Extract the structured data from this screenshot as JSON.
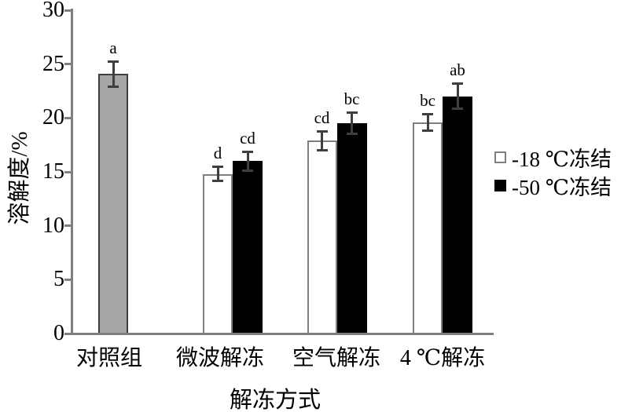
{
  "chart_data": {
    "type": "bar",
    "title": "",
    "xlabel": "解冻方式",
    "ylabel": "溶解度/%",
    "ylim": [
      0,
      30
    ],
    "yticks": [
      0,
      5,
      10,
      15,
      20,
      25,
      30
    ],
    "grid": false,
    "legend_position": "right",
    "categories": [
      "对照组",
      "微波解冻",
      "空气解冻",
      "4 ℃解冻"
    ],
    "series": [
      {
        "name": "对照组",
        "style": "control",
        "points": [
          {
            "category": "对照组",
            "value": 24.1,
            "error": 1.2,
            "letter": "a"
          }
        ]
      },
      {
        "name": "-18 ℃冻结",
        "style": "open",
        "points": [
          {
            "category": "微波解冻",
            "value": 14.8,
            "error": 0.7,
            "letter": "d"
          },
          {
            "category": "空气解冻",
            "value": 17.9,
            "error": 0.9,
            "letter": "cd"
          },
          {
            "category": "4 ℃解冻",
            "value": 19.6,
            "error": 0.8,
            "letter": "bc"
          }
        ]
      },
      {
        "name": "-50 ℃冻结",
        "style": "solid",
        "points": [
          {
            "category": "微波解冻",
            "value": 16.0,
            "error": 0.9,
            "letter": "cd"
          },
          {
            "category": "空气解冻",
            "value": 19.5,
            "error": 1.0,
            "letter": "bc"
          },
          {
            "category": "4 ℃解冻",
            "value": 22.0,
            "error": 1.2,
            "letter": "ab"
          }
        ]
      }
    ],
    "legend": {
      "entries": [
        {
          "label": "-18 ℃冻结",
          "fill": "#ffffff",
          "border": "#7f7f7f"
        },
        {
          "label": "-50 ℃冻结",
          "fill": "#000000",
          "border": "#000000"
        }
      ]
    }
  },
  "colors": {
    "control_fill": "#a6a6a6",
    "control_border": "#3f3f3f",
    "open_fill": "#ffffff",
    "open_border": "#7f7f7f",
    "solid_fill": "#000000",
    "axis": "#7f7f7f",
    "error_bar": "#3f3f3f",
    "text": "#000000"
  }
}
